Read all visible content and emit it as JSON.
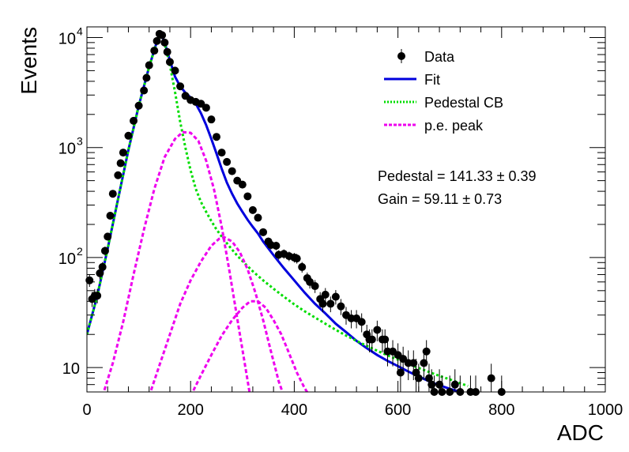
{
  "chart_data": {
    "type": "scatter",
    "xlabel": "ADC",
    "ylabel": "Events",
    "xlim": [
      0,
      1000
    ],
    "ylim": [
      6,
      12500
    ],
    "yscale": "log",
    "grid": false,
    "legend_position": "top-right",
    "x_ticks": [
      {
        "value": 0,
        "label": "0"
      },
      {
        "value": 200,
        "label": "200"
      },
      {
        "value": 400,
        "label": "400"
      },
      {
        "value": 600,
        "label": "600"
      },
      {
        "value": 800,
        "label": "800"
      },
      {
        "value": 1000,
        "label": "1000"
      }
    ],
    "y_ticks": [
      {
        "value": 10,
        "base": "10",
        "exp": ""
      },
      {
        "value": 100,
        "base": "10",
        "exp": "2"
      },
      {
        "value": 1000,
        "base": "10",
        "exp": "3"
      },
      {
        "value": 10000,
        "base": "10",
        "exp": "4"
      }
    ],
    "annotations": {
      "pedestal": "Pedestal = 141.33 ± 0.39",
      "gain": "Gain = 59.11 ± 0.73"
    },
    "series": [
      {
        "name": "Data",
        "kind": "points",
        "color": "#000000",
        "points": [
          [
            5,
            62
          ],
          [
            10,
            42
          ],
          [
            15,
            45
          ],
          [
            20,
            45
          ],
          [
            25,
            72
          ],
          [
            30,
            82
          ],
          [
            35,
            115
          ],
          [
            40,
            155
          ],
          [
            45,
            240
          ],
          [
            50,
            380
          ],
          [
            60,
            560
          ],
          [
            65,
            720
          ],
          [
            70,
            900
          ],
          [
            80,
            1280
          ],
          [
            90,
            1750
          ],
          [
            100,
            2400
          ],
          [
            110,
            3300
          ],
          [
            115,
            4300
          ],
          [
            120,
            5600
          ],
          [
            130,
            7600
          ],
          [
            135,
            9300
          ],
          [
            140,
            10800
          ],
          [
            145,
            10500
          ],
          [
            150,
            9000
          ],
          [
            155,
            7400
          ],
          [
            160,
            6000
          ],
          [
            170,
            5000
          ],
          [
            180,
            3600
          ],
          [
            190,
            2950
          ],
          [
            200,
            2700
          ],
          [
            210,
            2600
          ],
          [
            220,
            2500
          ],
          [
            230,
            2300
          ],
          [
            240,
            1800
          ],
          [
            250,
            1250
          ],
          [
            260,
            900
          ],
          [
            270,
            740
          ],
          [
            280,
            610
          ],
          [
            290,
            500
          ],
          [
            300,
            460
          ],
          [
            310,
            360
          ],
          [
            320,
            270
          ],
          [
            330,
            230
          ],
          [
            340,
            170
          ],
          [
            350,
            140
          ],
          [
            355,
            130
          ],
          [
            365,
            128
          ],
          [
            370,
            106
          ],
          [
            380,
            108
          ],
          [
            390,
            103
          ],
          [
            400,
            100
          ],
          [
            405,
            98
          ],
          [
            415,
            82
          ],
          [
            425,
            65
          ],
          [
            430,
            60
          ],
          [
            440,
            55
          ],
          [
            450,
            42
          ],
          [
            455,
            38
          ],
          [
            460,
            46
          ],
          [
            470,
            38
          ],
          [
            480,
            44
          ],
          [
            490,
            36
          ],
          [
            500,
            30
          ],
          [
            510,
            28
          ],
          [
            520,
            28
          ],
          [
            530,
            26
          ],
          [
            540,
            20
          ],
          [
            545,
            18
          ],
          [
            550,
            18
          ],
          [
            560,
            22
          ],
          [
            570,
            18
          ],
          [
            575,
            18
          ],
          [
            580,
            14
          ],
          [
            590,
            14
          ],
          [
            600,
            13
          ],
          [
            605,
            9
          ],
          [
            610,
            12
          ],
          [
            620,
            11
          ],
          [
            630,
            11
          ],
          [
            635,
            9
          ],
          [
            640,
            8
          ],
          [
            650,
            11
          ],
          [
            655,
            14
          ],
          [
            660,
            8
          ],
          [
            665,
            7
          ],
          [
            670,
            6
          ],
          [
            680,
            7
          ],
          [
            685,
            6
          ],
          [
            700,
            6
          ],
          [
            710,
            7
          ],
          [
            720,
            6
          ],
          [
            740,
            6
          ],
          [
            750,
            6
          ],
          [
            780,
            8
          ],
          [
            800,
            6
          ]
        ]
      },
      {
        "name": "Fit",
        "kind": "line",
        "color": "#0000dd",
        "points": [
          [
            0,
            20
          ],
          [
            20,
            45
          ],
          [
            40,
            120
          ],
          [
            60,
            340
          ],
          [
            80,
            950
          ],
          [
            100,
            2400
          ],
          [
            120,
            5400
          ],
          [
            135,
            9200
          ],
          [
            141.33,
            10800
          ],
          [
            145,
            10300
          ],
          [
            150,
            9000
          ],
          [
            160,
            6200
          ],
          [
            170,
            4400
          ],
          [
            180,
            3600
          ],
          [
            190,
            3150
          ],
          [
            200,
            2850
          ],
          [
            210,
            2500
          ],
          [
            220,
            2050
          ],
          [
            230,
            1600
          ],
          [
            240,
            1200
          ],
          [
            250,
            880
          ],
          [
            260,
            640
          ],
          [
            270,
            480
          ],
          [
            280,
            380
          ],
          [
            290,
            310
          ],
          [
            300,
            260
          ],
          [
            310,
            220
          ],
          [
            320,
            190
          ],
          [
            330,
            165
          ],
          [
            340,
            140
          ],
          [
            360,
            105
          ],
          [
            380,
            80
          ],
          [
            400,
            62
          ],
          [
            420,
            48
          ],
          [
            440,
            38
          ],
          [
            460,
            31
          ],
          [
            480,
            25
          ],
          [
            500,
            21
          ],
          [
            520,
            17.5
          ],
          [
            540,
            15
          ],
          [
            560,
            13
          ],
          [
            580,
            11.5
          ],
          [
            600,
            10.3
          ],
          [
            620,
            9.2
          ],
          [
            640,
            8.3
          ],
          [
            660,
            7.5
          ],
          [
            680,
            6.9
          ],
          [
            700,
            6.4
          ],
          [
            720,
            6.0
          ],
          [
            735,
            5.7
          ]
        ]
      },
      {
        "name": "Pedestal CB",
        "kind": "line",
        "color": "#00dd00",
        "points": [
          [
            0,
            20
          ],
          [
            20,
            45
          ],
          [
            40,
            120
          ],
          [
            60,
            340
          ],
          [
            80,
            950
          ],
          [
            100,
            2400
          ],
          [
            120,
            5400
          ],
          [
            135,
            9200
          ],
          [
            141.33,
            10800
          ],
          [
            145,
            10300
          ],
          [
            150,
            8800
          ],
          [
            160,
            5600
          ],
          [
            170,
            3200
          ],
          [
            180,
            1700
          ],
          [
            190,
            1000
          ],
          [
            200,
            620
          ],
          [
            210,
            420
          ],
          [
            220,
            320
          ],
          [
            230,
            260
          ],
          [
            240,
            215
          ],
          [
            250,
            180
          ],
          [
            260,
            155
          ],
          [
            270,
            135
          ],
          [
            280,
            118
          ],
          [
            290,
            104
          ],
          [
            300,
            93
          ],
          [
            320,
            75
          ],
          [
            340,
            62
          ],
          [
            360,
            52
          ],
          [
            380,
            44
          ],
          [
            400,
            37.5
          ],
          [
            420,
            32.5
          ],
          [
            440,
            28.5
          ],
          [
            460,
            25
          ],
          [
            480,
            22
          ],
          [
            500,
            19.5
          ],
          [
            520,
            17.5
          ],
          [
            540,
            15.7
          ],
          [
            560,
            14.2
          ],
          [
            580,
            12.9
          ],
          [
            600,
            11.8
          ],
          [
            620,
            10.8
          ],
          [
            640,
            9.9
          ],
          [
            660,
            9.1
          ],
          [
            680,
            8.4
          ],
          [
            700,
            7.8
          ],
          [
            720,
            7.2
          ],
          [
            735,
            6.8
          ]
        ]
      },
      {
        "name": "p.e. peak",
        "kind": "line",
        "color": "#ee00ee",
        "group": 1,
        "points": [
          [
            30,
            5.5
          ],
          [
            50,
            11
          ],
          [
            70,
            26
          ],
          [
            90,
            70
          ],
          [
            110,
            180
          ],
          [
            130,
            420
          ],
          [
            150,
            820
          ],
          [
            170,
            1200
          ],
          [
            185,
            1380
          ],
          [
            200,
            1360
          ],
          [
            215,
            1150
          ],
          [
            230,
            760
          ],
          [
            245,
            420
          ],
          [
            260,
            190
          ],
          [
            275,
            75
          ],
          [
            290,
            28
          ],
          [
            305,
            10.5
          ],
          [
            315,
            5.5
          ]
        ]
      },
      {
        "name": "",
        "kind": "line",
        "color": "#ee00ee",
        "group": 2,
        "points": [
          [
            120,
            5.5
          ],
          [
            140,
            10.5
          ],
          [
            160,
            20
          ],
          [
            180,
            38
          ],
          [
            200,
            62
          ],
          [
            220,
            92
          ],
          [
            240,
            128
          ],
          [
            255,
            148
          ],
          [
            265,
            153
          ],
          [
            280,
            140
          ],
          [
            295,
            112
          ],
          [
            310,
            78
          ],
          [
            325,
            48
          ],
          [
            340,
            27
          ],
          [
            355,
            14
          ],
          [
            370,
            7.5
          ],
          [
            380,
            5.5
          ]
        ]
      },
      {
        "name": "",
        "kind": "line",
        "color": "#ee00ee",
        "group": 3,
        "points": [
          [
            200,
            5.5
          ],
          [
            220,
            8.5
          ],
          [
            240,
            13
          ],
          [
            260,
            19.5
          ],
          [
            280,
            27
          ],
          [
            300,
            35
          ],
          [
            315,
            40
          ],
          [
            330,
            40
          ],
          [
            345,
            35
          ],
          [
            360,
            27
          ],
          [
            375,
            20
          ],
          [
            390,
            13.5
          ],
          [
            405,
            9
          ],
          [
            420,
            6.5
          ],
          [
            430,
            5.5
          ]
        ]
      }
    ]
  }
}
